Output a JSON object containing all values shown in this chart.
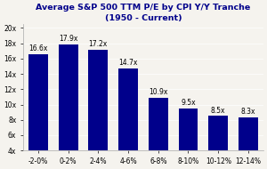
{
  "title_line1": "Average S&P 500 TTM P/E by CPI Y/Y Tranche",
  "title_line2": "(1950 - Current)",
  "categories": [
    "-2-0%",
    "0-2%",
    "2-4%",
    "4-6%",
    "6-8%",
    "8-10%",
    "10-12%",
    "12-14%"
  ],
  "values": [
    16.6,
    17.9,
    17.2,
    14.7,
    10.9,
    9.5,
    8.5,
    8.3
  ],
  "labels": [
    "16.6x",
    "17.9x",
    "17.2x",
    "14.7x",
    "10.9x",
    "9.5x",
    "8.5x",
    "8.3x"
  ],
  "bar_color": "#00008B",
  "background_color": "#f5f3ee",
  "ylim_min": 4,
  "ylim_max": 20.5,
  "yticks": [
    4,
    6,
    8,
    10,
    12,
    14,
    16,
    18,
    20
  ],
  "ytick_labels": [
    "4x",
    "6x",
    "8x",
    "10x",
    "12x",
    "14x",
    "16x",
    "18x",
    "20x"
  ],
  "title_color": "#00008B",
  "title_fontsize": 6.8,
  "label_fontsize": 5.5,
  "tick_fontsize": 5.5,
  "bar_width": 0.65
}
